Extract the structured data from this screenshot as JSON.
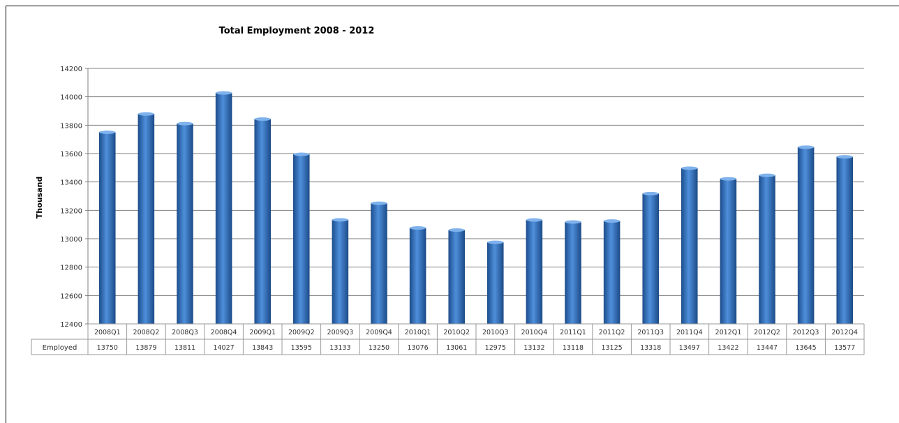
{
  "chart_data": {
    "type": "bar",
    "title": "Total Employment 2008 - 2012",
    "xlabel": "",
    "ylabel": "Thousand",
    "ylim": [
      12400,
      14200
    ],
    "yticks": [
      12400,
      12600,
      12800,
      13000,
      13200,
      13400,
      13600,
      13800,
      14000,
      14200
    ],
    "grid": true,
    "categories": [
      "2008Q1",
      "2008Q2",
      "2008Q3",
      "2008Q4",
      "2009Q1",
      "2009Q2",
      "2009Q3",
      "2009Q4",
      "2010Q1",
      "2010Q2",
      "2010Q3",
      "2010Q4",
      "2011Q1",
      "2011Q2",
      "2011Q3",
      "2011Q4",
      "2012Q1",
      "2012Q2",
      "2012Q3",
      "2012Q4"
    ],
    "series": [
      {
        "name": "Employed",
        "values": [
          13750,
          13879,
          13811,
          14027,
          13843,
          13595,
          13133,
          13250,
          13076,
          13061,
          12975,
          13132,
          13118,
          13125,
          13318,
          13497,
          13422,
          13447,
          13645,
          13577
        ]
      }
    ],
    "bar_color": "#2f6fbd",
    "data_table": true
  }
}
